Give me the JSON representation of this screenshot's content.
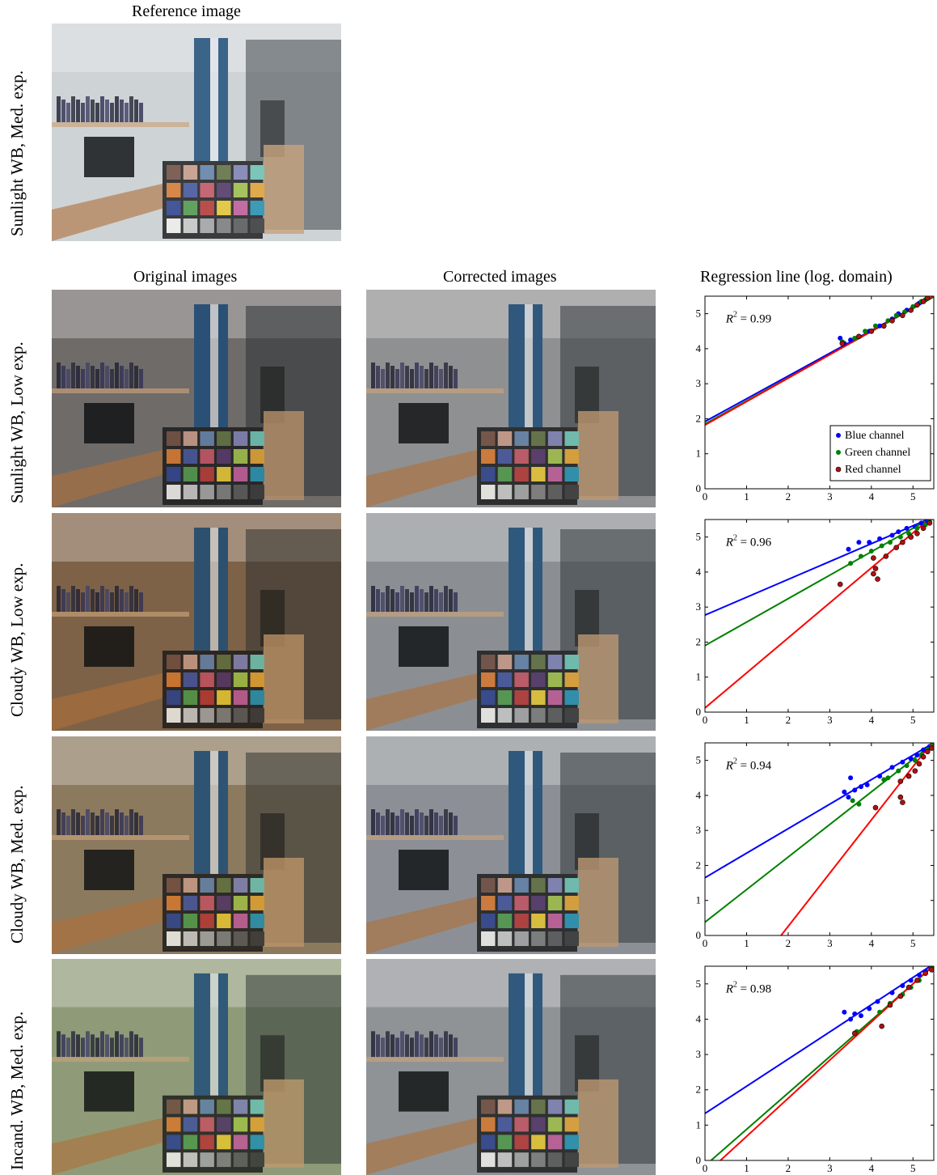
{
  "titles": {
    "reference": "Reference image",
    "original": "Original images",
    "corrected": "Corrected images",
    "regression": "Regression line (log. domain)"
  },
  "reference_row_label": "Sunlight WB, Med. exp.",
  "rows": [
    {
      "label": "Sunlight WB, Low exp.",
      "r2_label": "= 0.99"
    },
    {
      "label": "Cloudy WB, Low exp.",
      "r2_label": "= 0.96"
    },
    {
      "label": "Cloudy WB, Med. exp.",
      "r2_label": "= 0.94"
    },
    {
      "label": "Incand. WB, Med. exp.",
      "r2_label": "= 0.98"
    }
  ],
  "image_tints": {
    "reference": "#cfd3d6",
    "original": [
      "#6f6c6a",
      "#7d6247",
      "#8d7a60",
      "#8f9b78"
    ],
    "corrected": [
      "#8f9092",
      "#8c8f93",
      "#8d9196",
      "#8f9397"
    ]
  },
  "chart_data": [
    {
      "type": "scatter",
      "r2_text": "R2 = 0.99",
      "xlim": [
        0,
        5.5
      ],
      "ylim": [
        0,
        5.5
      ],
      "xticks": [
        0,
        1,
        2,
        3,
        4,
        5
      ],
      "yticks": [
        0,
        1,
        2,
        3,
        4,
        5
      ],
      "legend": {
        "position": "bottom-right",
        "entries": [
          "Blue channel",
          "Green channel",
          "Red channel"
        ]
      },
      "lines": [
        {
          "name": "Blue channel",
          "color": "#0000ff",
          "intercept": 1.92,
          "slope": 0.65
        },
        {
          "name": "Green channel",
          "color": "#008000",
          "intercept": 1.85,
          "slope": 0.66
        },
        {
          "name": "Red channel",
          "color": "#ff0000",
          "intercept": 1.82,
          "slope": 0.67
        }
      ],
      "points": [
        {
          "channel": "Blue channel",
          "xy": [
            [
              3.25,
              4.3
            ],
            [
              3.35,
              4.15
            ],
            [
              3.5,
              4.25
            ],
            [
              3.7,
              4.35
            ],
            [
              3.95,
              4.5
            ],
            [
              4.2,
              4.65
            ],
            [
              4.5,
              4.85
            ],
            [
              4.65,
              5.0
            ],
            [
              4.85,
              5.1
            ],
            [
              5.0,
              5.2
            ],
            [
              5.15,
              5.3
            ],
            [
              5.3,
              5.4
            ]
          ]
        },
        {
          "channel": "Green channel",
          "xy": [
            [
              3.3,
              4.2
            ],
            [
              3.6,
              4.3
            ],
            [
              3.85,
              4.5
            ],
            [
              4.1,
              4.65
            ],
            [
              4.4,
              4.8
            ],
            [
              4.6,
              4.95
            ],
            [
              4.8,
              5.05
            ],
            [
              5.0,
              5.2
            ],
            [
              5.2,
              5.35
            ],
            [
              5.3,
              5.4
            ]
          ]
        },
        {
          "channel": "Red channel",
          "xy": [
            [
              3.3,
              4.15
            ],
            [
              3.7,
              4.35
            ],
            [
              4.0,
              4.5
            ],
            [
              4.3,
              4.65
            ],
            [
              4.5,
              4.8
            ],
            [
              4.75,
              4.95
            ],
            [
              4.95,
              5.1
            ],
            [
              5.1,
              5.25
            ],
            [
              5.25,
              5.35
            ],
            [
              5.35,
              5.45
            ]
          ]
        }
      ]
    },
    {
      "type": "scatter",
      "r2_text": "R2 = 0.96",
      "xlim": [
        0,
        5.5
      ],
      "ylim": [
        0,
        5.5
      ],
      "xticks": [
        0,
        1,
        2,
        3,
        4,
        5
      ],
      "yticks": [
        0,
        1,
        2,
        3,
        4,
        5
      ],
      "lines": [
        {
          "name": "Blue channel",
          "color": "#0000ff",
          "intercept": 2.77,
          "slope": 0.51
        },
        {
          "name": "Green channel",
          "color": "#008000",
          "intercept": 1.9,
          "slope": 0.67
        },
        {
          "name": "Red channel",
          "color": "#ff0000",
          "intercept": 0.12,
          "slope": 1.0
        }
      ],
      "points": [
        {
          "channel": "Blue channel",
          "xy": [
            [
              3.45,
              4.65
            ],
            [
              3.7,
              4.85
            ],
            [
              3.95,
              4.85
            ],
            [
              4.2,
              4.95
            ],
            [
              4.5,
              5.05
            ],
            [
              4.65,
              5.15
            ],
            [
              4.85,
              5.25
            ],
            [
              5.05,
              5.3
            ],
            [
              5.2,
              5.4
            ],
            [
              5.35,
              5.45
            ]
          ]
        },
        {
          "channel": "Green channel",
          "xy": [
            [
              3.5,
              4.25
            ],
            [
              3.75,
              4.45
            ],
            [
              4.0,
              4.6
            ],
            [
              4.25,
              4.75
            ],
            [
              4.45,
              4.85
            ],
            [
              4.7,
              5.0
            ],
            [
              4.9,
              5.1
            ],
            [
              5.1,
              5.25
            ],
            [
              5.3,
              5.35
            ],
            [
              5.4,
              5.45
            ]
          ]
        },
        {
          "channel": "Red channel",
          "xy": [
            [
              3.25,
              3.65
            ],
            [
              4.05,
              3.95
            ],
            [
              4.1,
              4.1
            ],
            [
              4.15,
              3.8
            ],
            [
              4.05,
              4.4
            ],
            [
              4.35,
              4.45
            ],
            [
              4.6,
              4.7
            ],
            [
              4.75,
              4.85
            ],
            [
              4.95,
              5.0
            ],
            [
              5.1,
              5.1
            ],
            [
              5.25,
              5.25
            ],
            [
              5.4,
              5.4
            ]
          ]
        }
      ]
    },
    {
      "type": "scatter",
      "r2_text": "R2 = 0.94",
      "xlim": [
        0,
        5.5
      ],
      "ylim": [
        0,
        5.5
      ],
      "xticks": [
        0,
        1,
        2,
        3,
        4,
        5
      ],
      "yticks": [
        0,
        1,
        2,
        3,
        4,
        5
      ],
      "lines": [
        {
          "name": "Blue channel",
          "color": "#0000ff",
          "intercept": 1.65,
          "slope": 0.7
        },
        {
          "name": "Green channel",
          "color": "#008000",
          "intercept": 0.38,
          "slope": 0.93
        },
        {
          "name": "Red channel",
          "color": "#ff0000",
          "intercept": -2.78,
          "slope": 1.52
        }
      ],
      "points": [
        {
          "channel": "Blue channel",
          "xy": [
            [
              3.35,
              4.1
            ],
            [
              3.45,
              3.95
            ],
            [
              3.5,
              4.5
            ],
            [
              3.6,
              4.15
            ],
            [
              3.75,
              4.25
            ],
            [
              3.9,
              4.3
            ],
            [
              4.2,
              4.55
            ],
            [
              4.5,
              4.8
            ],
            [
              4.75,
              4.95
            ],
            [
              4.95,
              5.05
            ],
            [
              5.1,
              5.15
            ],
            [
              5.25,
              5.3
            ],
            [
              5.4,
              5.4
            ]
          ]
        },
        {
          "channel": "Green channel",
          "xy": [
            [
              3.55,
              3.85
            ],
            [
              3.7,
              3.75
            ],
            [
              4.3,
              4.45
            ],
            [
              4.4,
              4.5
            ],
            [
              4.65,
              4.7
            ],
            [
              4.85,
              4.85
            ],
            [
              5.05,
              5.0
            ],
            [
              5.2,
              5.15
            ],
            [
              5.35,
              5.3
            ],
            [
              5.45,
              5.4
            ]
          ]
        },
        {
          "channel": "Red channel",
          "xy": [
            [
              4.1,
              3.65
            ],
            [
              4.7,
              3.95
            ],
            [
              4.75,
              3.8
            ],
            [
              4.7,
              4.4
            ],
            [
              4.9,
              4.55
            ],
            [
              5.05,
              4.7
            ],
            [
              5.15,
              4.9
            ],
            [
              5.25,
              5.1
            ],
            [
              5.35,
              5.25
            ],
            [
              5.45,
              5.35
            ]
          ]
        }
      ]
    },
    {
      "type": "scatter",
      "r2_text": "R2 = 0.98",
      "xlim": [
        0,
        5.5
      ],
      "ylim": [
        0,
        5.5
      ],
      "xticks": [
        0,
        1,
        2,
        3,
        4,
        5
      ],
      "yticks": [
        0,
        1,
        2,
        3,
        4,
        5
      ],
      "lines": [
        {
          "name": "Blue channel",
          "color": "#0000ff",
          "intercept": 1.33,
          "slope": 0.77
        },
        {
          "name": "Green channel",
          "color": "#008000",
          "intercept": -0.15,
          "slope": 1.03
        },
        {
          "name": "Red channel",
          "color": "#ff0000",
          "intercept": -0.4,
          "slope": 1.08
        }
      ],
      "points": [
        {
          "channel": "Blue channel",
          "xy": [
            [
              3.35,
              4.2
            ],
            [
              3.5,
              4.0
            ],
            [
              3.6,
              4.15
            ],
            [
              3.75,
              4.1
            ],
            [
              3.95,
              4.3
            ],
            [
              4.15,
              4.5
            ],
            [
              4.5,
              4.75
            ],
            [
              4.75,
              4.95
            ],
            [
              4.95,
              5.1
            ],
            [
              5.15,
              5.25
            ],
            [
              5.3,
              5.35
            ],
            [
              5.45,
              5.45
            ]
          ]
        },
        {
          "channel": "Green channel",
          "xy": [
            [
              3.65,
              3.65
            ],
            [
              4.2,
              4.2
            ],
            [
              4.45,
              4.45
            ],
            [
              4.75,
              4.7
            ],
            [
              4.95,
              4.9
            ],
            [
              5.15,
              5.1
            ],
            [
              5.3,
              5.3
            ],
            [
              5.45,
              5.45
            ]
          ]
        },
        {
          "channel": "Red channel",
          "xy": [
            [
              3.6,
              3.6
            ],
            [
              4.25,
              3.8
            ],
            [
              4.45,
              4.4
            ],
            [
              4.7,
              4.65
            ],
            [
              4.9,
              4.9
            ],
            [
              5.1,
              5.1
            ],
            [
              5.3,
              5.3
            ],
            [
              5.45,
              5.4
            ]
          ]
        }
      ]
    }
  ]
}
